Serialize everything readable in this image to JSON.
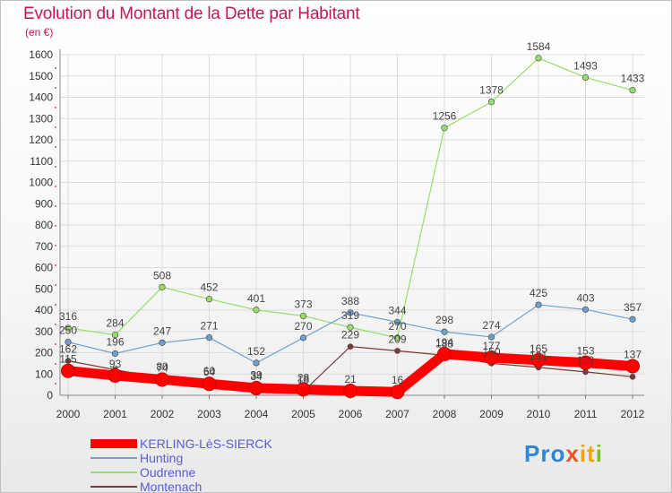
{
  "title": "Evolution du Montant de la Dette par Habitant",
  "unit_label": "(en €)",
  "logo": {
    "text": "Proxiti",
    "parts": [
      "Pro",
      "x",
      "it",
      "i"
    ]
  },
  "chart_data": {
    "type": "line",
    "title": "Evolution du Montant de la Dette par Habitant",
    "ylabel": "(en €)",
    "xlabel": "",
    "x": [
      "2000",
      "2001",
      "2002",
      "2003",
      "2004",
      "2005",
      "2006",
      "2007",
      "2008",
      "2009",
      "2010",
      "2011",
      "2012"
    ],
    "ylim": [
      0,
      1600
    ],
    "yticks": [
      0,
      100,
      200,
      300,
      400,
      500,
      600,
      700,
      800,
      900,
      1000,
      1100,
      1200,
      1300,
      1400,
      1500,
      1600
    ],
    "grid": true,
    "legend_position": "bottom-left",
    "series": [
      {
        "name": "KERLING-LèS-SIERCK",
        "color": "#ff0000",
        "values": [
          115,
          93,
          74,
          54,
          34,
          28,
          21,
          16,
          194,
          177,
          165,
          153,
          137
        ],
        "labels": [
          "115",
          "93",
          "74",
          "54",
          "34",
          "28",
          "21",
          "16",
          "194",
          "177",
          "165",
          "153",
          "137"
        ]
      },
      {
        "name": "Hunting",
        "color": "#6fa0cc",
        "values": [
          250,
          196,
          247,
          271,
          152,
          270,
          388,
          344,
          298,
          274,
          425,
          403,
          357
        ],
        "labels": [
          "250",
          "196",
          "247",
          "271",
          "152",
          "270",
          "388",
          "344",
          "298",
          "274",
          "425",
          "403",
          "357"
        ]
      },
      {
        "name": "Oudrenne",
        "color": "#99dd66",
        "values": [
          316,
          284,
          508,
          452,
          401,
          373,
          319,
          270,
          1256,
          1378,
          1584,
          1493,
          1433
        ],
        "labels": [
          "316",
          "284",
          "508",
          "452",
          "401",
          "373",
          "319",
          "270",
          "1256",
          "1378",
          "1584",
          "1493",
          "1433"
        ]
      },
      {
        "name": "Montenach",
        "color": "#7a3a3a",
        "values": [
          162,
          120,
          80,
          60,
          39,
          18,
          229,
          209,
          188,
          150,
          131,
          110,
          87
        ],
        "labels": [
          "162",
          "",
          "80",
          "60",
          "39",
          "18",
          "229",
          "209",
          "188",
          "150",
          "131",
          "110",
          ""
        ]
      }
    ]
  }
}
